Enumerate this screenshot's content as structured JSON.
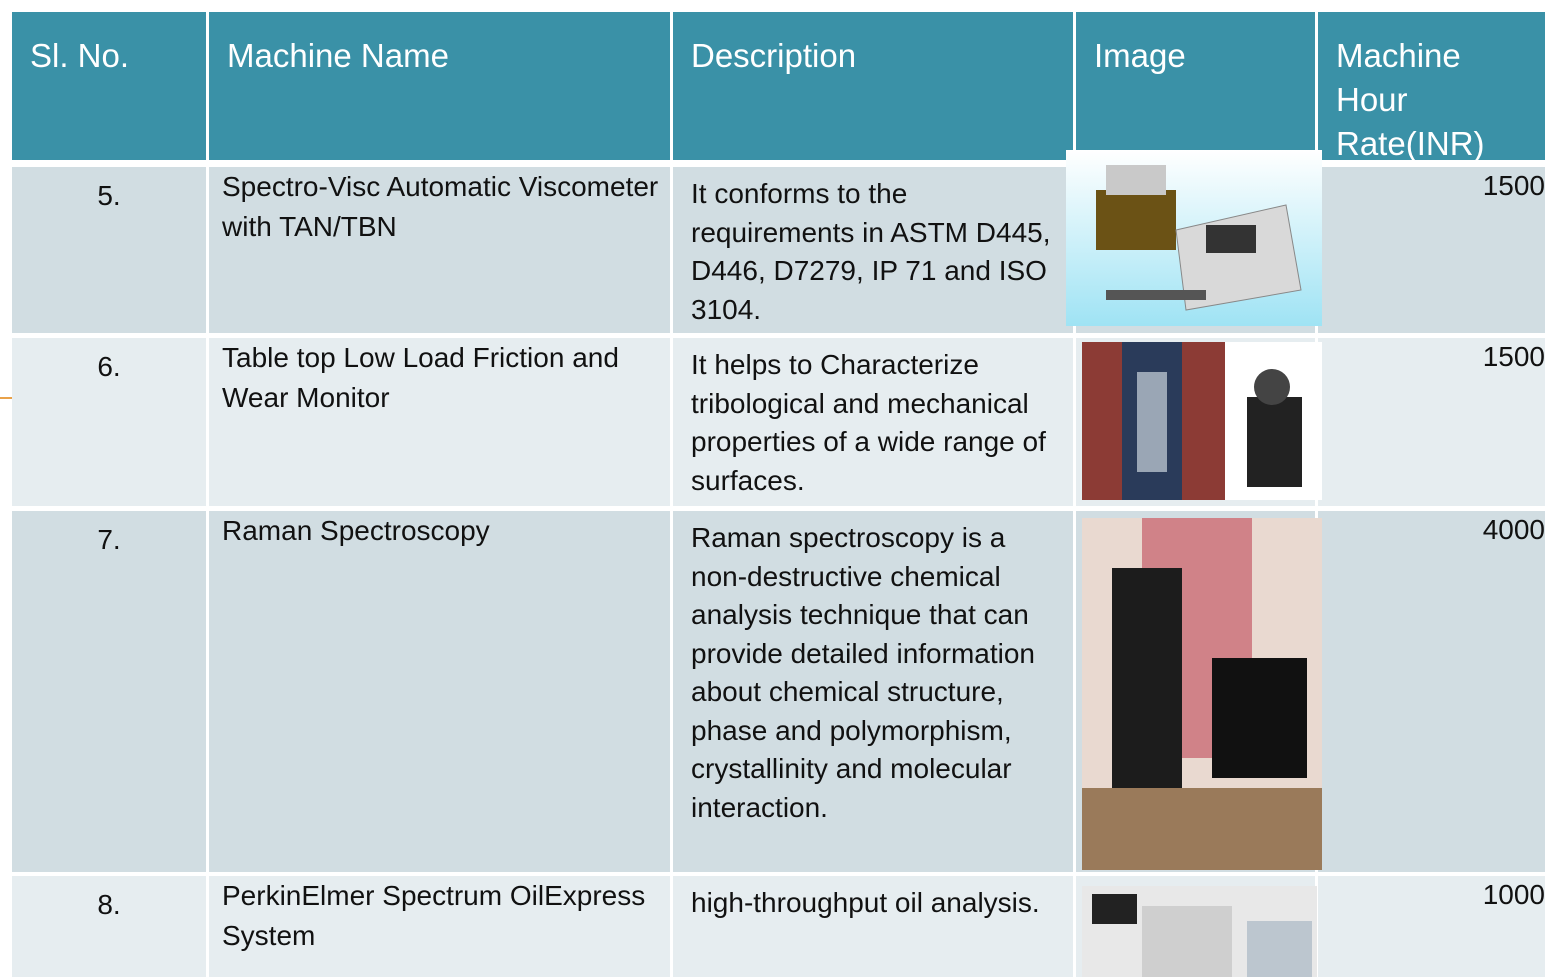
{
  "header": {
    "columns": [
      "Sl. No.",
      "Machine Name",
      "Description",
      "Image",
      "Machine Hour Rate(INR)"
    ]
  },
  "table": {
    "rows": [
      [
        "5.",
        "Spectro-Visc Automatic Viscometer with TAN/TBN",
        "It conforms to the requirements in ASTM D445, D446, D7279, IP 71 and ISO 3104.",
        1500
      ],
      [
        "6.",
        "Table top Low Load Friction and Wear Monitor",
        "It helps to Characterize tribological and mechanical properties of a wide range of surfaces.",
        1500
      ],
      [
        "7.",
        "Raman Spectroscopy",
        "Raman spectroscopy is a non-destructive chemical analysis technique that can provide detailed information about chemical structure, phase and polymorphism, crystallinity and molecular interaction.",
        4000
      ],
      [
        "8.",
        "PerkinElmer Spectrum OilExpress System",
        "high-throughput  oil analysis.",
        1000
      ]
    ]
  }
}
